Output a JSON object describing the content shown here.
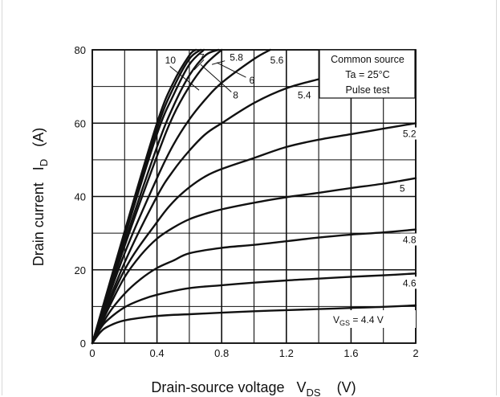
{
  "chart_data": {
    "type": "line",
    "title": "",
    "xlabel": "Drain-source voltage",
    "xlabel_symbol": "V",
    "xlabel_subscript": "DS",
    "xlabel_unit": "(V)",
    "ylabel": "Drain current",
    "ylabel_symbol": "I",
    "ylabel_subscript": "D",
    "ylabel_unit": "(A)",
    "xlim": [
      0,
      2
    ],
    "ylim": [
      0,
      80
    ],
    "xticks": [
      "0",
      "0.4",
      "0.8",
      "1.2",
      "1.6",
      "2"
    ],
    "yticks": [
      "0",
      "20",
      "40",
      "60",
      "80"
    ],
    "grid": true,
    "annotation_box": {
      "line1": "Common source",
      "line2": "Ta = 25°C",
      "line3": "Pulse test",
      "placement": "top-right"
    },
    "vgs_prefix": "V",
    "vgs_subscript": "GS",
    "vgs_suffix": " = 4.4 V",
    "series": [
      {
        "name": "4.4",
        "x": [
          0,
          0.05,
          0.1,
          0.2,
          0.4,
          0.6,
          0.8,
          1.0,
          1.2,
          1.4,
          1.6,
          1.8,
          2.0
        ],
        "y": [
          0,
          3,
          4.6,
          6.2,
          7.4,
          7.9,
          8.3,
          8.7,
          9.0,
          9.3,
          9.6,
          9.9,
          10.3
        ]
      },
      {
        "name": "4.6",
        "x": [
          0,
          0.05,
          0.1,
          0.2,
          0.3,
          0.4,
          0.6,
          0.8,
          1.0,
          1.2,
          1.4,
          1.6,
          1.8,
          2.0
        ],
        "y": [
          0,
          4,
          6.5,
          9.8,
          11.8,
          13.2,
          15.0,
          15.8,
          16.5,
          17.1,
          17.6,
          18.1,
          18.5,
          19.0
        ]
      },
      {
        "name": "4.8",
        "x": [
          0,
          0.1,
          0.2,
          0.3,
          0.4,
          0.5,
          0.6,
          0.8,
          1.0,
          1.2,
          1.4,
          1.6,
          1.8,
          2.0
        ],
        "y": [
          0,
          8,
          13.5,
          17.5,
          20.5,
          22.5,
          24.5,
          26.0,
          26.8,
          27.8,
          28.8,
          29.6,
          30.2,
          31.0
        ]
      },
      {
        "name": "5",
        "x": [
          0,
          0.1,
          0.2,
          0.3,
          0.4,
          0.5,
          0.6,
          0.7,
          0.8,
          1.0,
          1.2,
          1.4,
          1.6,
          1.8,
          2.0
        ],
        "y": [
          0,
          9.5,
          18,
          24,
          28.5,
          31.5,
          33.8,
          35.3,
          36.5,
          38.3,
          39.8,
          41.0,
          42.3,
          43.5,
          45.0
        ]
      },
      {
        "name": "5.2",
        "x": [
          0,
          0.2,
          0.4,
          0.5,
          0.6,
          0.7,
          0.8,
          1.0,
          1.2,
          1.4,
          1.6,
          1.8,
          2.0
        ],
        "y": [
          0,
          20,
          33,
          38.5,
          42.5,
          45.5,
          47.5,
          50.5,
          53.5,
          55.5,
          57.0,
          58.5,
          60.0
        ]
      },
      {
        "name": "5.4",
        "x": [
          0,
          0.2,
          0.4,
          0.5,
          0.6,
          0.7,
          0.8,
          1.0,
          1.2,
          1.4
        ],
        "y": [
          0,
          22,
          40,
          47,
          52.5,
          57,
          60,
          65.5,
          69.5,
          72.0
        ]
      },
      {
        "name": "5.6",
        "x": [
          0,
          0.2,
          0.4,
          0.5,
          0.6,
          0.7,
          0.8,
          1.0,
          1.1
        ],
        "y": [
          0,
          24.5,
          45,
          54,
          61,
          66.5,
          71,
          77.5,
          80
        ]
      },
      {
        "name": "5.8",
        "x": [
          0,
          0.2,
          0.4,
          0.5,
          0.6,
          0.7,
          0.8
        ],
        "y": [
          0,
          26.5,
          51,
          62,
          70,
          76,
          80
        ]
      },
      {
        "name": "6",
        "x": [
          0,
          0.2,
          0.4,
          0.5,
          0.6,
          0.7,
          0.78
        ],
        "y": [
          0,
          27.5,
          53.5,
          64.5,
          73,
          78.5,
          80
        ]
      },
      {
        "name": "7",
        "x": [
          0,
          0.2,
          0.4,
          0.5,
          0.6,
          0.69
        ],
        "y": [
          0,
          29,
          57,
          67.5,
          76,
          80
        ]
      },
      {
        "name": "8",
        "x": [
          0,
          0.2,
          0.4,
          0.5,
          0.6,
          0.67
        ],
        "y": [
          0,
          29.5,
          58.5,
          69.5,
          77.5,
          80
        ]
      },
      {
        "name": "10",
        "x": [
          0,
          0.2,
          0.4,
          0.5,
          0.6,
          0.64
        ],
        "y": [
          0,
          30.5,
          60,
          71,
          78.5,
          80
        ]
      }
    ]
  }
}
